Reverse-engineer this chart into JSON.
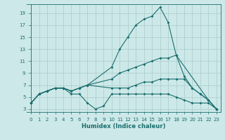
{
  "xlabel": "Humidex (Indice chaleur)",
  "xlim": [
    -0.5,
    23.5
  ],
  "ylim": [
    2.5,
    20.5
  ],
  "xticks": [
    0,
    1,
    2,
    3,
    4,
    5,
    6,
    7,
    8,
    9,
    10,
    11,
    12,
    13,
    14,
    15,
    16,
    17,
    18,
    19,
    20,
    21,
    22,
    23
  ],
  "yticks": [
    3,
    5,
    7,
    9,
    11,
    13,
    15,
    17,
    19
  ],
  "bg_color": "#cde8e8",
  "grid_color": "#aed0d0",
  "line_color": "#1a6e6e",
  "lines": [
    {
      "x": [
        0,
        1,
        2,
        3,
        4,
        5,
        6,
        7,
        10,
        11,
        12,
        13,
        14,
        15,
        16,
        17,
        18,
        22,
        23
      ],
      "y": [
        4.0,
        5.5,
        6.0,
        6.5,
        6.5,
        6.0,
        6.5,
        7.0,
        10.0,
        13.0,
        15.0,
        17.0,
        18.0,
        18.5,
        20.0,
        17.5,
        12.0,
        4.5,
        3.0
      ]
    },
    {
      "x": [
        0,
        1,
        2,
        3,
        4,
        5,
        6,
        7,
        10,
        11,
        12,
        13,
        14,
        15,
        16,
        17,
        18,
        19,
        20,
        21,
        22,
        23
      ],
      "y": [
        4.0,
        5.5,
        6.0,
        6.5,
        6.5,
        6.0,
        6.5,
        7.0,
        8.0,
        9.0,
        9.5,
        10.0,
        10.5,
        11.0,
        11.5,
        11.5,
        12.0,
        8.5,
        6.5,
        5.5,
        4.5,
        3.0
      ]
    },
    {
      "x": [
        0,
        1,
        2,
        3,
        4,
        5,
        6,
        7,
        10,
        11,
        12,
        13,
        14,
        15,
        16,
        17,
        18,
        19,
        20,
        21,
        22,
        23
      ],
      "y": [
        4.0,
        5.5,
        6.0,
        6.5,
        6.5,
        6.0,
        6.5,
        7.0,
        6.5,
        6.5,
        6.5,
        7.0,
        7.5,
        7.5,
        8.0,
        8.0,
        8.0,
        8.0,
        6.5,
        5.5,
        4.5,
        3.0
      ]
    },
    {
      "x": [
        0,
        1,
        2,
        3,
        4,
        5,
        6,
        7,
        8,
        9,
        10,
        11,
        12,
        13,
        14,
        15,
        16,
        17,
        18,
        19,
        20,
        21,
        22,
        23
      ],
      "y": [
        4.0,
        5.5,
        6.0,
        6.5,
        6.5,
        5.5,
        5.5,
        4.0,
        3.0,
        3.5,
        5.5,
        5.5,
        5.5,
        5.5,
        5.5,
        5.5,
        5.5,
        5.5,
        5.0,
        4.5,
        4.0,
        4.0,
        4.0,
        3.0
      ]
    }
  ]
}
